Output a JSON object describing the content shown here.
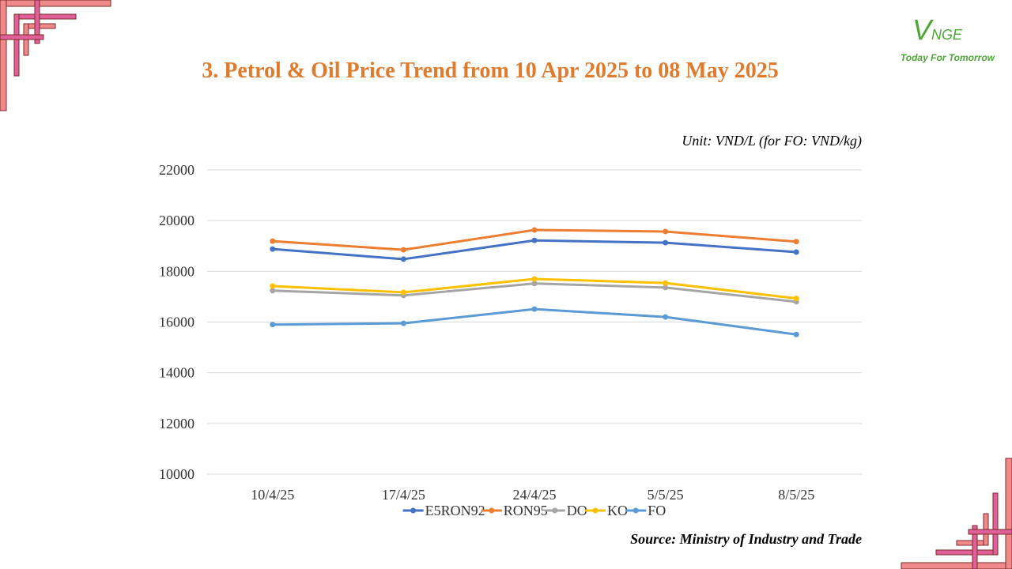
{
  "slide": {
    "title": "3. Petrol & Oil Price Trend from 10 Apr 2025 to 08 May 2025",
    "unit": "Unit: VND/L (for FO: VND/kg)",
    "source": "Source: Ministry of Industry and Trade"
  },
  "logo": {
    "mark_v": "V",
    "mark_rest": "NGE",
    "slogan": "Today For Tomorrow",
    "color": "#4da636"
  },
  "decoration": {
    "pink": "#f08a8a",
    "magenta": "#e0609a",
    "outline": "#7a2a2a"
  },
  "chart_data": {
    "type": "line",
    "categories": [
      "10/4/25",
      "17/4/25",
      "24/4/25",
      "5/5/25",
      "8/5/25"
    ],
    "ylim": [
      10000,
      22000
    ],
    "yticks": [
      "10000",
      "12000",
      "14000",
      "16000",
      "18000",
      "20000",
      "22000"
    ],
    "grid": true,
    "legend_position": "bottom",
    "series": [
      {
        "name": "E5RON92",
        "color": "#4472c4",
        "values": [
          18880,
          18480,
          19220,
          19130,
          18760
        ]
      },
      {
        "name": "RON95",
        "color": "#ed7d31",
        "values": [
          19190,
          18850,
          19630,
          19570,
          19170
        ]
      },
      {
        "name": "DO",
        "color": "#a5a5a5",
        "values": [
          17240,
          17050,
          17520,
          17360,
          16800
        ]
      },
      {
        "name": "KO",
        "color": "#ffc000",
        "values": [
          17420,
          17170,
          17700,
          17540,
          16930
        ]
      },
      {
        "name": "FO",
        "color": "#5b9bd5",
        "values": [
          15900,
          15950,
          16510,
          16200,
          15510
        ]
      }
    ]
  }
}
